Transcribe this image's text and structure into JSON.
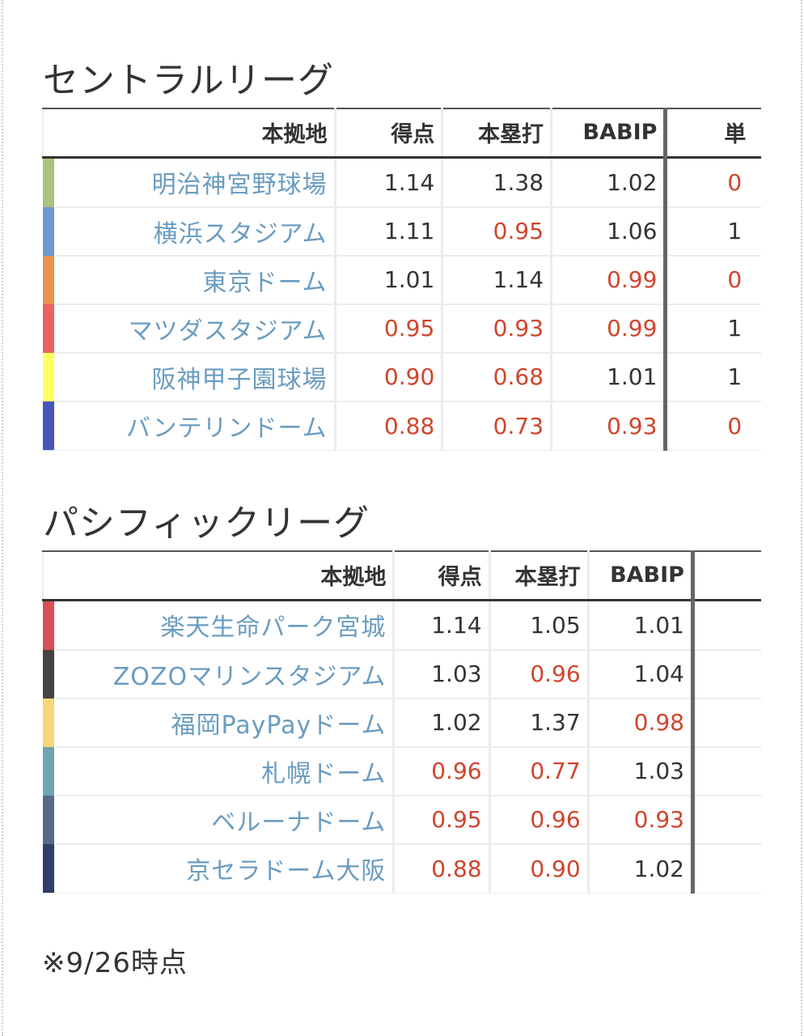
{
  "central": {
    "title": "セントラルリーグ",
    "headers": {
      "park": "本拠地",
      "runs": "得点",
      "hr": "本塁打",
      "babip": "BABIP",
      "next": "単"
    },
    "rows": [
      {
        "name": "明治神宮野球場",
        "color": "#a9c27e",
        "runs": "1.14",
        "runs_low": false,
        "hr": "1.38",
        "hr_low": false,
        "babip": "1.02",
        "babip_low": false,
        "next": "0",
        "next_low": true
      },
      {
        "name": "横浜スタジアム",
        "color": "#6d98d3",
        "runs": "1.11",
        "runs_low": false,
        "hr": "0.95",
        "hr_low": true,
        "babip": "1.06",
        "babip_low": false,
        "next": "1",
        "next_low": false
      },
      {
        "name": "東京ドーム",
        "color": "#ea944c",
        "runs": "1.01",
        "runs_low": false,
        "hr": "1.14",
        "hr_low": false,
        "babip": "0.99",
        "babip_low": true,
        "next": "0",
        "next_low": true
      },
      {
        "name": "マツダスタジアム",
        "color": "#ec6161",
        "runs": "0.95",
        "runs_low": true,
        "hr": "0.93",
        "hr_low": true,
        "babip": "0.99",
        "babip_low": true,
        "next": "1",
        "next_low": false
      },
      {
        "name": "阪神甲子園球場",
        "color": "#ffff62",
        "runs": "0.90",
        "runs_low": true,
        "hr": "0.68",
        "hr_low": true,
        "babip": "1.01",
        "babip_low": false,
        "next": "1",
        "next_low": false
      },
      {
        "name": "バンテリンドーム",
        "color": "#4756b8",
        "runs": "0.88",
        "runs_low": true,
        "hr": "0.73",
        "hr_low": true,
        "babip": "0.93",
        "babip_low": true,
        "next": "0",
        "next_low": true
      }
    ]
  },
  "pacific": {
    "title": "パシフィックリーグ",
    "headers": {
      "park": "本拠地",
      "runs": "得点",
      "hr": "本塁打",
      "babip": "BABIP"
    },
    "rows": [
      {
        "name": "楽天生命パーク宮城",
        "color": "#d65056",
        "runs": "1.14",
        "runs_low": false,
        "hr": "1.05",
        "hr_low": false,
        "babip": "1.01",
        "babip_low": false
      },
      {
        "name": "ZOZOマリンスタジアム",
        "color": "#444444",
        "runs": "1.03",
        "runs_low": false,
        "hr": "0.96",
        "hr_low": true,
        "babip": "1.04",
        "babip_low": false
      },
      {
        "name": "福岡PayPayドーム",
        "color": "#f6d679",
        "runs": "1.02",
        "runs_low": false,
        "hr": "1.37",
        "hr_low": false,
        "babip": "0.98",
        "babip_low": true
      },
      {
        "name": "札幌ドーム",
        "color": "#6ea5b0",
        "runs": "0.96",
        "runs_low": true,
        "hr": "0.77",
        "hr_low": true,
        "babip": "1.03",
        "babip_low": false
      },
      {
        "name": "ベルーナドーム",
        "color": "#556a86",
        "runs": "0.95",
        "runs_low": true,
        "hr": "0.96",
        "hr_low": true,
        "babip": "0.93",
        "babip_low": true
      },
      {
        "name": "京セラドーム大阪",
        "color": "#2f3f6a",
        "runs": "0.88",
        "runs_low": true,
        "hr": "0.90",
        "hr_low": true,
        "babip": "1.02",
        "babip_low": false
      }
    ]
  },
  "note": "※9/26時点"
}
